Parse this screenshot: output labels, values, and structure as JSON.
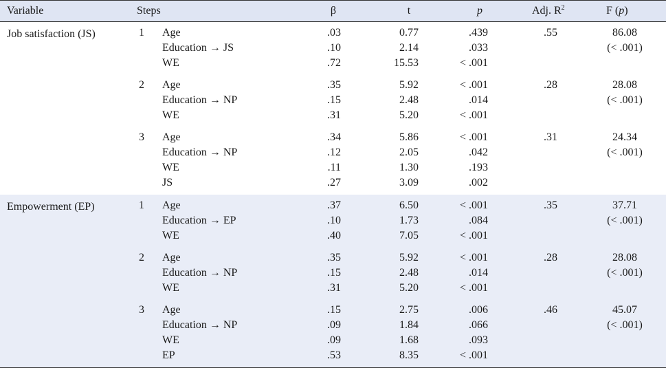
{
  "header": {
    "variable": "Variable",
    "steps": "Steps",
    "beta": "β",
    "t": "t",
    "p": "p",
    "adj_r2": "Adj. R",
    "adj_r2_sup": "2",
    "f_prefix": "F (",
    "f_p": "p",
    "f_suffix": ")"
  },
  "groups": [
    {
      "variable": "Job satisfaction (JS)",
      "steps": [
        {
          "step": "1",
          "adj_r2": ".55",
          "f": "86.08",
          "f_p": "(< .001)",
          "rows": [
            {
              "label": "Age",
              "beta": ".03",
              "t": "0.77",
              "p": ".439"
            },
            {
              "label": "Education → JS",
              "beta": ".10",
              "t": "2.14",
              "p": ".033"
            },
            {
              "label": "WE",
              "beta": ".72",
              "t": "15.53",
              "p": "< .001"
            }
          ]
        },
        {
          "step": "2",
          "adj_r2": ".28",
          "f": "28.08",
          "f_p": "(< .001)",
          "rows": [
            {
              "label": "Age",
              "beta": ".35",
              "t": "5.92",
              "p": "< .001"
            },
            {
              "label": "Education → NP",
              "beta": ".15",
              "t": "2.48",
              "p": ".014"
            },
            {
              "label": "WE",
              "beta": ".31",
              "t": "5.20",
              "p": "< .001"
            }
          ]
        },
        {
          "step": "3",
          "adj_r2": ".31",
          "f": "24.34",
          "f_p": "(< .001)",
          "rows": [
            {
              "label": "Age",
              "beta": ".34",
              "t": "5.86",
              "p": "< .001"
            },
            {
              "label": "Education → NP",
              "beta": ".12",
              "t": "2.05",
              "p": ".042"
            },
            {
              "label": "WE",
              "beta": ".11",
              "t": "1.30",
              "p": ".193"
            },
            {
              "label": "JS",
              "beta": ".27",
              "t": "3.09",
              "p": ".002"
            }
          ]
        }
      ]
    },
    {
      "variable": "Empowerment (EP)",
      "steps": [
        {
          "step": "1",
          "adj_r2": ".35",
          "f": "37.71",
          "f_p": "(< .001)",
          "rows": [
            {
              "label": "Age",
              "beta": ".37",
              "t": "6.50",
              "p": "< .001"
            },
            {
              "label": "Education → EP",
              "beta": ".10",
              "t": "1.73",
              "p": ".084"
            },
            {
              "label": "WE",
              "beta": ".40",
              "t": "7.05",
              "p": "< .001"
            }
          ]
        },
        {
          "step": "2",
          "adj_r2": ".28",
          "f": "28.08",
          "f_p": "(< .001)",
          "rows": [
            {
              "label": "Age",
              "beta": ".35",
              "t": "5.92",
              "p": "< .001"
            },
            {
              "label": "Education → NP",
              "beta": ".15",
              "t": "2.48",
              "p": ".014"
            },
            {
              "label": "WE",
              "beta": ".31",
              "t": "5.20",
              "p": "< .001"
            }
          ]
        },
        {
          "step": "3",
          "adj_r2": ".46",
          "f": "45.07",
          "f_p": "(< .001)",
          "rows": [
            {
              "label": "Age",
              "beta": ".15",
              "t": "2.75",
              "p": ".006"
            },
            {
              "label": "Education → NP",
              "beta": ".09",
              "t": "1.84",
              "p": ".066"
            },
            {
              "label": "WE",
              "beta": ".09",
              "t": "1.68",
              "p": ".093"
            },
            {
              "label": "EP",
              "beta": ".53",
              "t": "8.35",
              "p": "< .001"
            }
          ]
        }
      ]
    }
  ]
}
